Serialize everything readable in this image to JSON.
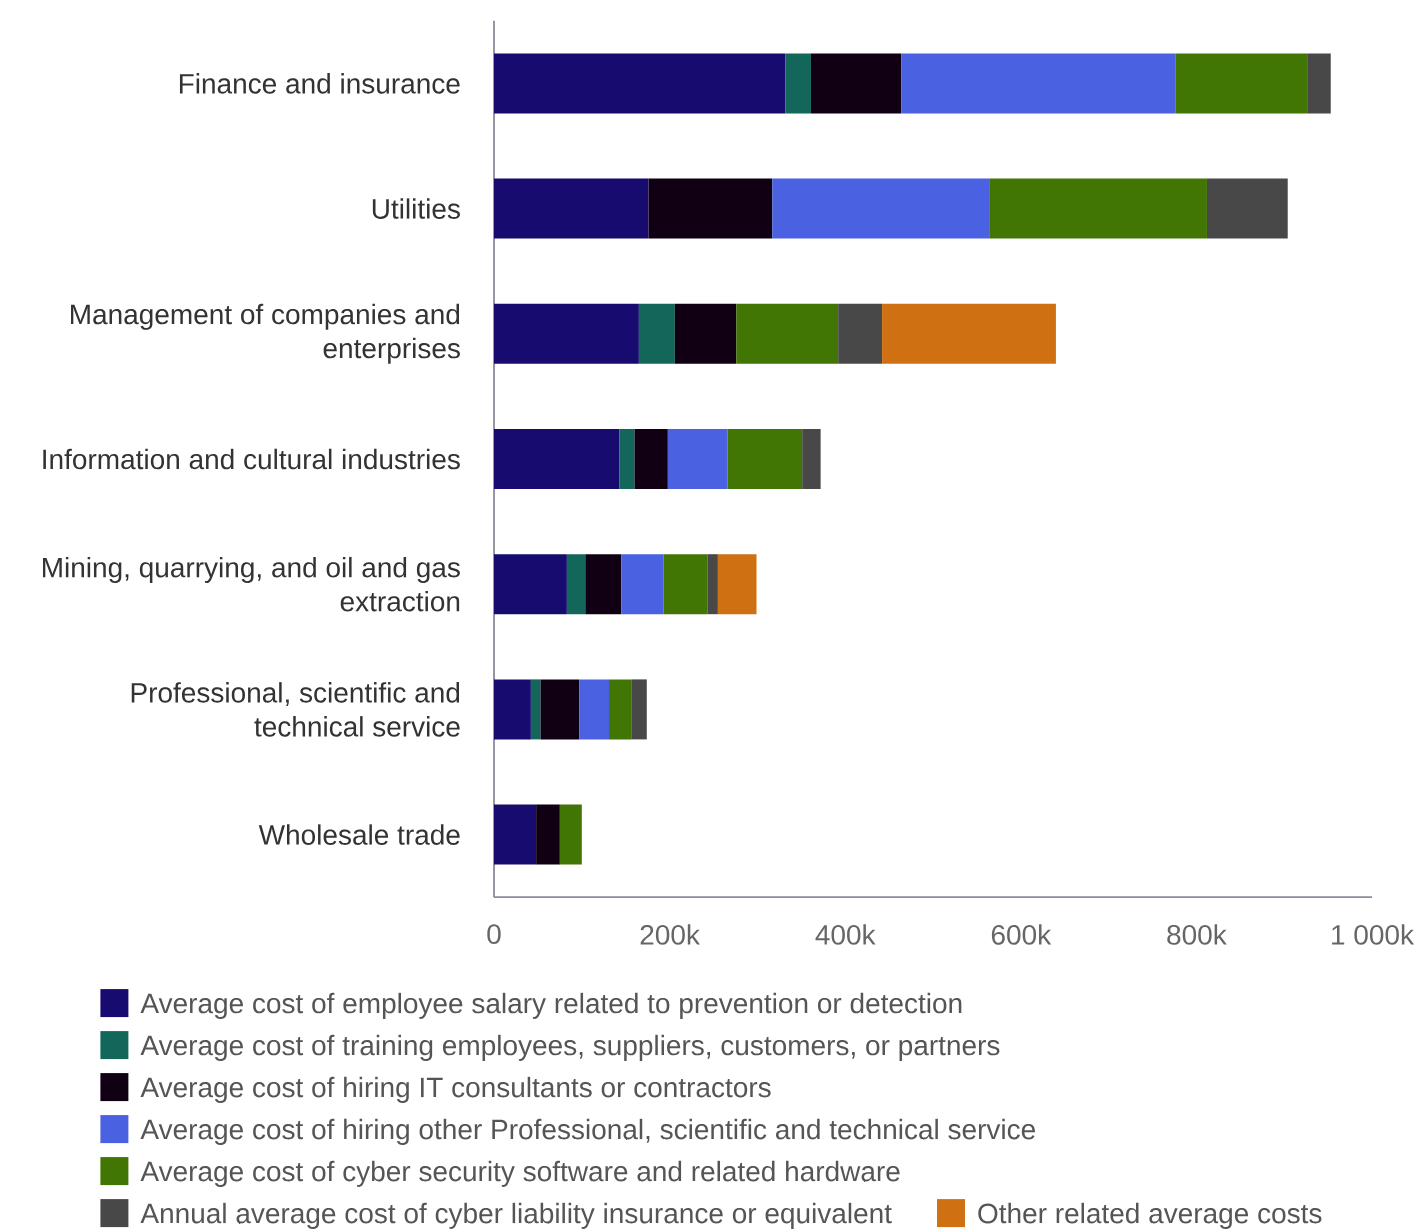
{
  "chart_data": {
    "type": "bar",
    "orientation": "horizontal",
    "stacked": true,
    "legend": "bottom",
    "categories": [
      "Finance and insurance",
      "Utilities",
      "Management of companies and enterprises",
      "Information and cultural industries",
      "Mining, quarrying, and oil and gas extraction",
      "Professional, scientific and technical service",
      "Wholesale trade"
    ],
    "xlim": [
      0,
      1000000
    ],
    "xticks": [
      0,
      {
        "value": 200000,
        "label": "200k"
      },
      {
        "value": 400000,
        "label": "400k"
      },
      {
        "value": 600000,
        "label": "600k"
      },
      {
        "value": 800000,
        "label": "800k"
      },
      {
        "value": 1000000,
        "label": "1 000k"
      }
    ],
    "series": [
      {
        "name": "Average cost of employee salary related to prevention or detection",
        "color": "#170b70",
        "values": [
          332000,
          176000,
          165000,
          143000,
          83000,
          42000,
          48000
        ]
      },
      {
        "name": "Average cost of training employees, suppliers, customers, or partners",
        "color": "#12675a",
        "values": [
          29000,
          null,
          41000,
          17000,
          21000,
          11000,
          null
        ]
      },
      {
        "name": "Average cost of hiring IT consultants or contractors",
        "color": "#110013",
        "values": [
          103000,
          141000,
          70000,
          38000,
          41000,
          44000,
          27000
        ]
      },
      {
        "name": "Average cost of hiring other Professional, scientific and technical service",
        "color": "#4a61e2",
        "values": [
          312000,
          247000,
          null,
          68000,
          48000,
          34000,
          null
        ]
      },
      {
        "name": "Average cost of cyber security software and related hardware",
        "color": "#417504",
        "values": [
          151000,
          248000,
          116000,
          85000,
          50000,
          26000,
          25000
        ]
      },
      {
        "name": "Annual average cost of cyber liability insurance or equivalent",
        "color": "#484848",
        "values": [
          26000,
          92000,
          50000,
          21000,
          12000,
          17000,
          null
        ]
      },
      {
        "name": "Other related average costs",
        "color": "#cf7113",
        "values": [
          null,
          null,
          198000,
          null,
          44000,
          null,
          null
        ]
      }
    ]
  }
}
